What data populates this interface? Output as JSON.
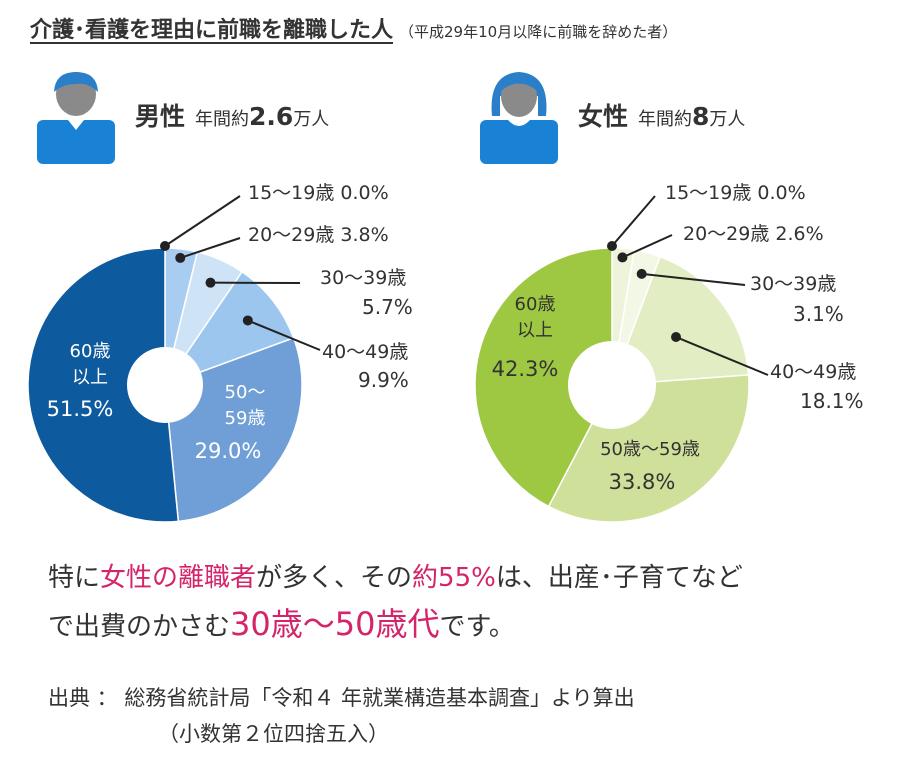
{
  "title": {
    "main": "介護･看護を理由に前職を離職した人",
    "sub": "（平成29年10月以降に前職を辞めた者）"
  },
  "male": {
    "gender": "男性",
    "prefix": "年間約",
    "number": "2.6",
    "unit": "万人"
  },
  "female": {
    "gender": "女性",
    "prefix": "年間約",
    "number": "8",
    "unit": "万人"
  },
  "chart_data": [
    {
      "type": "pie",
      "title": "男性 年間約2.6万人",
      "categories": [
        "15～19歳",
        "20～29歳",
        "30～39歳",
        "40～49歳",
        "50～59歳",
        "60歳以上"
      ],
      "values": [
        0.0,
        3.8,
        5.7,
        9.9,
        29.0,
        51.5
      ],
      "labels": [
        "0.0%",
        "3.8%",
        "5.7%",
        "9.9%",
        "29.0%",
        "51.5%"
      ],
      "colors": [
        "#b9d7f2",
        "#a9cdf0",
        "#cfe3f7",
        "#9cc6ee",
        "#6f9fd6",
        "#0e5a9e"
      ],
      "inner_labels": {
        "50s_line1": "50～",
        "50s_line2": "59歳",
        "60_line1": "60歳",
        "60_line2": "以上"
      }
    },
    {
      "type": "pie",
      "title": "女性 年間約8万人",
      "categories": [
        "15～19歳",
        "20～29歳",
        "30～39歳",
        "40～49歳",
        "50～59歳",
        "60歳以上"
      ],
      "values": [
        0.0,
        2.6,
        3.1,
        18.1,
        33.8,
        42.3
      ],
      "labels": [
        "0.0%",
        "2.6%",
        "3.1%",
        "18.1%",
        "33.8%",
        "42.3%"
      ],
      "colors": [
        "#f0f5de",
        "#eef4db",
        "#f3f8e6",
        "#e2edc3",
        "#cfe09a",
        "#9ec742"
      ],
      "inner_labels": {
        "50s": "50歳～59歳",
        "60_line1": "60歳",
        "60_line2": "以上"
      }
    }
  ],
  "summary": {
    "p1": "特に",
    "h1": "女性の離職者",
    "p2": "が多く、その",
    "h2": "約55%",
    "p3": "は、出産･子育てなど",
    "p4": "で出費のかさむ",
    "h3": "30歳～50歳代",
    "p5": "です。"
  },
  "source": {
    "line1": "出典 ： 総務省統計局「令和４ 年就業構造基本調査」より算出",
    "line2": "（小数第２位四捨五入）"
  }
}
